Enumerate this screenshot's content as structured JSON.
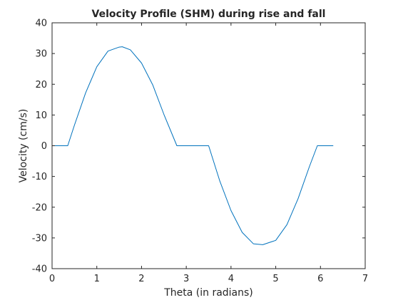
{
  "chart_data": {
    "type": "line",
    "title": "Velocity Profile (SHM) during rise and fall",
    "xlabel": "Theta (in radians)",
    "ylabel": "Velocity (cm/s)",
    "xlim": [
      0,
      7
    ],
    "ylim": [
      -40,
      40
    ],
    "xticks": [
      0,
      1,
      2,
      3,
      4,
      5,
      6,
      7
    ],
    "xtick_labels": [
      "0",
      "1",
      "2",
      "3",
      "4",
      "5",
      "6",
      "7"
    ],
    "yticks": [
      40,
      30,
      20,
      10,
      0,
      -10,
      -20,
      -30,
      -40
    ],
    "ytick_labels": [
      "40",
      "30",
      "20",
      "10",
      "0",
      "-10",
      "-20",
      "-30",
      "-40"
    ],
    "grid": false,
    "series": [
      {
        "color": "#0072bd",
        "x": [
          0,
          0.35,
          0.5,
          0.75,
          1.0,
          1.25,
          1.5,
          1.57,
          1.75,
          2.0,
          2.25,
          2.5,
          2.79,
          3.0,
          3.25,
          3.5,
          3.75,
          4.0,
          4.25,
          4.5,
          4.71,
          5.0,
          5.25,
          5.5,
          5.75,
          5.93,
          6.28
        ],
        "y": [
          0,
          0,
          6.7,
          17.2,
          25.7,
          30.8,
          32.1,
          32.2,
          31.2,
          26.9,
          19.8,
          10.2,
          0,
          0,
          0,
          0,
          -11.5,
          -21.1,
          -28.2,
          -31.9,
          -32.2,
          -30.8,
          -25.7,
          -17.2,
          -6.9,
          0,
          0
        ]
      }
    ]
  }
}
